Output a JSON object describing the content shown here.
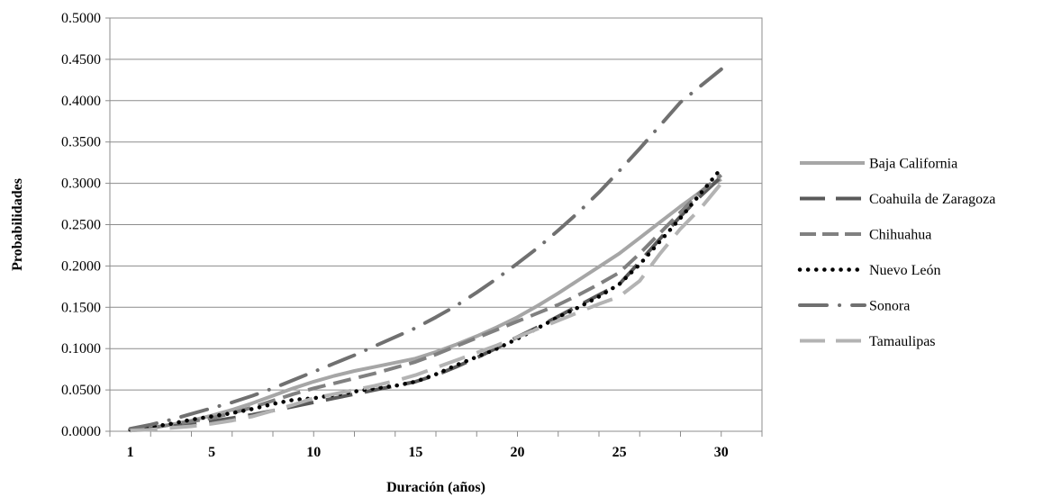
{
  "chart_data": {
    "type": "line",
    "title": "",
    "xlabel": "Duración (años)",
    "ylabel": "Probabilidades",
    "x": [
      1,
      2,
      3,
      4,
      5,
      6,
      7,
      8,
      9,
      10,
      11,
      12,
      13,
      14,
      15,
      16,
      17,
      18,
      19,
      20,
      21,
      22,
      23,
      24,
      25,
      26,
      27,
      28,
      29,
      30
    ],
    "x_tick_labels": [
      "1",
      "5",
      "10",
      "15",
      "20",
      "25",
      "30"
    ],
    "x_tick_values": [
      1,
      5,
      10,
      15,
      20,
      25,
      30
    ],
    "ylim": [
      0,
      0.5
    ],
    "y_tick_labels": [
      "0.0000",
      "0.0500",
      "0.1000",
      "0.1500",
      "0.2000",
      "0.2500",
      "0.3000",
      "0.3500",
      "0.4000",
      "0.4500",
      "0.5000"
    ],
    "grid": true,
    "legend_position": "right",
    "series": [
      {
        "name": "Baja California",
        "color": "#a6a6a6",
        "dash": "solid",
        "values": [
          0.001,
          0.004,
          0.008,
          0.013,
          0.019,
          0.026,
          0.034,
          0.043,
          0.052,
          0.06,
          0.067,
          0.073,
          0.078,
          0.083,
          0.088,
          0.096,
          0.105,
          0.115,
          0.126,
          0.138,
          0.152,
          0.167,
          0.183,
          0.199,
          0.215,
          0.234,
          0.253,
          0.272,
          0.29,
          0.305
        ]
      },
      {
        "name": "Coahuila de Zaragoza",
        "color": "#595959",
        "dash": "longdash",
        "values": [
          0.001,
          0.003,
          0.006,
          0.009,
          0.012,
          0.016,
          0.02,
          0.025,
          0.03,
          0.035,
          0.04,
          0.045,
          0.05,
          0.055,
          0.06,
          0.068,
          0.078,
          0.089,
          0.101,
          0.114,
          0.126,
          0.139,
          0.152,
          0.165,
          0.178,
          0.205,
          0.233,
          0.26,
          0.285,
          0.308
        ]
      },
      {
        "name": "Chihuahua",
        "color": "#808080",
        "dash": "dash",
        "values": [
          0.001,
          0.004,
          0.008,
          0.012,
          0.016,
          0.022,
          0.029,
          0.037,
          0.045,
          0.052,
          0.058,
          0.064,
          0.07,
          0.077,
          0.084,
          0.093,
          0.103,
          0.113,
          0.123,
          0.133,
          0.143,
          0.153,
          0.165,
          0.178,
          0.192,
          0.215,
          0.24,
          0.265,
          0.29,
          0.31
        ]
      },
      {
        "name": "Nuevo León",
        "color": "#000000",
        "dash": "dot",
        "values": [
          0.002,
          0.005,
          0.009,
          0.014,
          0.018,
          0.022,
          0.027,
          0.033,
          0.038,
          0.04,
          0.044,
          0.048,
          0.052,
          0.055,
          0.06,
          0.069,
          0.08,
          0.09,
          0.1,
          0.112,
          0.125,
          0.138,
          0.15,
          0.163,
          0.178,
          0.202,
          0.23,
          0.258,
          0.288,
          0.318
        ]
      },
      {
        "name": "Sonora",
        "color": "#707070",
        "dash": "dashdot",
        "values": [
          0.003,
          0.008,
          0.014,
          0.021,
          0.028,
          0.035,
          0.043,
          0.052,
          0.062,
          0.072,
          0.082,
          0.092,
          0.103,
          0.114,
          0.125,
          0.138,
          0.152,
          0.168,
          0.185,
          0.203,
          0.222,
          0.243,
          0.265,
          0.289,
          0.315,
          0.342,
          0.37,
          0.398,
          0.418,
          0.438
        ]
      },
      {
        "name": "Tamaulipas",
        "color": "#b3b3b3",
        "dash": "longdash",
        "values": [
          0.001,
          0.002,
          0.004,
          0.006,
          0.009,
          0.013,
          0.018,
          0.025,
          0.032,
          0.04,
          0.045,
          0.05,
          0.055,
          0.061,
          0.068,
          0.077,
          0.086,
          0.095,
          0.104,
          0.114,
          0.124,
          0.134,
          0.144,
          0.154,
          0.163,
          0.182,
          0.215,
          0.245,
          0.27,
          0.3
        ]
      }
    ]
  }
}
